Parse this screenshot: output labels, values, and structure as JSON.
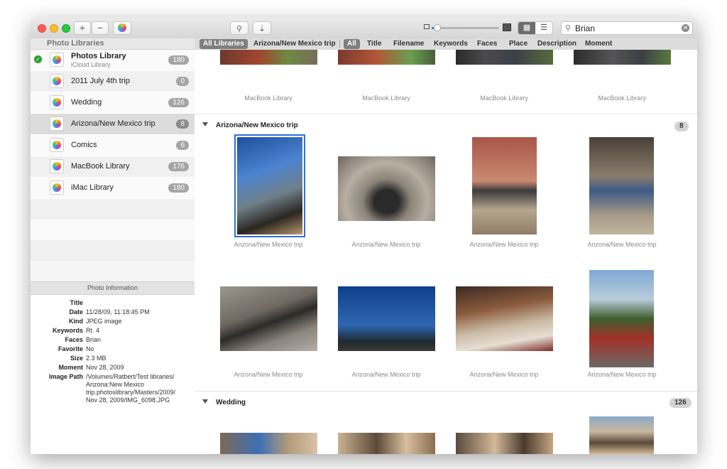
{
  "toolbar": {
    "add_label": "+",
    "remove_label": "−",
    "search_query": "Brian",
    "zoom_level": 0.08
  },
  "sidebar": {
    "header": "Photo Libraries",
    "libraries": [
      {
        "name": "Photos Library",
        "sub": "iCloud Library",
        "count": "180",
        "active": true
      },
      {
        "name": "2011 July 4th trip",
        "count": "0"
      },
      {
        "name": "Wedding",
        "count": "126"
      },
      {
        "name": "Arizona/New Mexico trip",
        "count": "8",
        "selected": true
      },
      {
        "name": "Comics",
        "count": "6"
      },
      {
        "name": "MacBook Library",
        "count": "176"
      },
      {
        "name": "iMac Library",
        "count": "180"
      }
    ]
  },
  "info": {
    "header": "Photo Information",
    "rows": [
      {
        "k": "Title",
        "v": ""
      },
      {
        "k": "Date",
        "v": "11/28/09, 11:18:45 PM"
      },
      {
        "k": "Kind",
        "v": "JPEG image"
      },
      {
        "k": "Keywords",
        "v": "Rt. 4"
      },
      {
        "k": "Faces",
        "v": "Brian"
      },
      {
        "k": "Favorite",
        "v": "No"
      },
      {
        "k": "Size",
        "v": "2.3 MB"
      },
      {
        "k": "Moment",
        "v": "Nov 28, 2009"
      },
      {
        "k": "Image Path",
        "v": "/Volumes/Ratbert/Test libraries/ Arizona:New Mexico trip.photoslibrary/Masters/2009/ Nov 28, 2009/IMG_6098.JPG"
      }
    ]
  },
  "filters": {
    "all_libraries": "All Libraries",
    "current_library": "Arizona/New Mexico trip",
    "all": "All",
    "title": "Title",
    "filename": "Filename",
    "keywords": "Keywords",
    "faces": "Faces",
    "place": "Place",
    "description": "Description",
    "moment": "Moment"
  },
  "content": {
    "top_captions": [
      "MacBook Library",
      "MacBook Library",
      "MacBook Library",
      "MacBook Library"
    ],
    "section1": {
      "title": "Arizona/New Mexico trip",
      "count": "8"
    },
    "row1_captions": [
      "Arizona/New Mexico trip",
      "Arizona/New Mexico trip",
      "Arizona/New Mexico trip",
      "Arizona/New Mexico trip"
    ],
    "row2_captions": [
      "Arizona/New Mexico trip",
      "Arizona/New Mexico trip",
      "Arizona/New Mexico trip",
      "Arizona/New Mexico trip"
    ],
    "section2": {
      "title": "Wedding",
      "count": "126"
    }
  },
  "colors": {
    "selection": "#2f6ed8",
    "check": "#2ca12c"
  }
}
